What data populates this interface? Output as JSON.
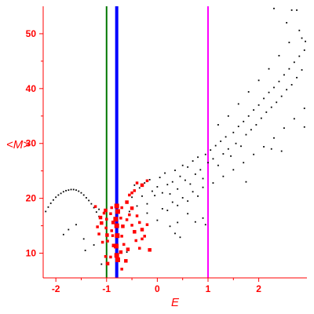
{
  "chart_data": {
    "type": "scatter",
    "title": "",
    "xlabel": "E",
    "ylabel": "<M>",
    "xlim": [
      -2.25,
      2.95
    ],
    "ylim": [
      5.5,
      55
    ],
    "x_ticks": [
      -2,
      -1,
      0,
      1,
      2
    ],
    "y_ticks": [
      10,
      20,
      30,
      40,
      50
    ],
    "grid": false,
    "legend": "none",
    "colors": {
      "axis": "#ff0000",
      "background_points": "#000000",
      "highlight_points": "#ff0000",
      "line_green": "#007700",
      "line_blue": "#0000ff",
      "line_magenta": "#ff00ff"
    },
    "vertical_lines": [
      {
        "x": -1.0,
        "color": "#007700"
      },
      {
        "x": -0.8,
        "color": "#0000ff"
      },
      {
        "x": 1.0,
        "color": "#ff00ff"
      }
    ],
    "series": [
      {
        "color": "#000000",
        "points": [
          [
            -2.2,
            17.6
          ],
          [
            -2.15,
            18.4
          ],
          [
            -2.1,
            19.1
          ],
          [
            -2.05,
            19.7
          ],
          [
            -2.0,
            20.2
          ],
          [
            -1.95,
            20.6
          ],
          [
            -1.9,
            20.9
          ],
          [
            -1.85,
            21.2
          ],
          [
            -1.8,
            21.4
          ],
          [
            -1.75,
            21.5
          ],
          [
            -1.7,
            21.6
          ],
          [
            -1.65,
            21.6
          ],
          [
            -1.6,
            21.5
          ],
          [
            -1.55,
            21.3
          ],
          [
            -1.5,
            21.0
          ],
          [
            -1.45,
            20.6
          ],
          [
            -1.4,
            20.1
          ],
          [
            -1.35,
            19.6
          ],
          [
            -1.3,
            19.0
          ],
          [
            -1.25,
            18.3
          ],
          [
            -1.2,
            17.5
          ],
          [
            -1.15,
            16.7
          ],
          [
            -1.85,
            13.4
          ],
          [
            -1.75,
            14.3
          ],
          [
            -1.6,
            15.2
          ],
          [
            -1.45,
            12.6
          ],
          [
            -1.42,
            10.5
          ],
          [
            -1.25,
            11.5
          ],
          [
            -1.1,
            8.0
          ],
          [
            -1.15,
            18.0
          ],
          [
            -0.6,
            10.2
          ],
          [
            -0.55,
            17.6
          ],
          [
            -0.5,
            20.2
          ],
          [
            -0.45,
            22.4
          ],
          [
            -0.4,
            18.6
          ],
          [
            -0.35,
            21.9
          ],
          [
            -0.3,
            20.4
          ],
          [
            -0.25,
            22.8
          ],
          [
            -0.2,
            19.0
          ],
          [
            -0.15,
            23.4
          ],
          [
            -0.1,
            21.3
          ],
          [
            -0.05,
            20.5
          ],
          [
            0.0,
            22.1
          ],
          [
            0.05,
            23.8
          ],
          [
            0.1,
            21.0
          ],
          [
            0.15,
            24.6
          ],
          [
            0.2,
            22.5
          ],
          [
            0.25,
            20.8
          ],
          [
            0.3,
            23.0
          ],
          [
            0.35,
            25.1
          ],
          [
            0.4,
            21.7
          ],
          [
            0.45,
            24.0
          ],
          [
            0.5,
            26.0
          ],
          [
            0.55,
            23.3
          ],
          [
            0.6,
            25.7
          ],
          [
            0.65,
            22.6
          ],
          [
            0.7,
            26.8
          ],
          [
            0.75,
            24.4
          ],
          [
            0.8,
            27.5
          ],
          [
            0.85,
            25.2
          ],
          [
            0.9,
            23.6
          ],
          [
            0.95,
            28.0
          ],
          [
            -0.2,
            17.3
          ],
          [
            0.0,
            16.0
          ],
          [
            0.1,
            18.1
          ],
          [
            0.2,
            17.8
          ],
          [
            0.3,
            19.3
          ],
          [
            0.4,
            18.7
          ],
          [
            0.5,
            20.1
          ],
          [
            0.6,
            19.5
          ],
          [
            0.7,
            21.2
          ],
          [
            0.8,
            20.4
          ],
          [
            0.9,
            22.0
          ],
          [
            0.25,
            14.9
          ],
          [
            0.35,
            13.6
          ],
          [
            0.45,
            12.9
          ],
          [
            0.4,
            15.6
          ],
          [
            0.6,
            17.2
          ],
          [
            0.75,
            15.7
          ],
          [
            0.9,
            16.4
          ],
          [
            0.95,
            15.2
          ],
          [
            1.0,
            26.5
          ],
          [
            1.05,
            28.8
          ],
          [
            1.1,
            27.2
          ],
          [
            1.15,
            29.6
          ],
          [
            1.2,
            26.0
          ],
          [
            1.25,
            30.4
          ],
          [
            1.3,
            28.1
          ],
          [
            1.35,
            31.2
          ],
          [
            1.4,
            29.0
          ],
          [
            1.45,
            27.7
          ],
          [
            1.5,
            32.0
          ],
          [
            1.55,
            30.0
          ],
          [
            1.6,
            33.1
          ],
          [
            1.65,
            29.5
          ],
          [
            1.7,
            34.0
          ],
          [
            1.75,
            31.6
          ],
          [
            1.8,
            35.0
          ],
          [
            1.85,
            32.5
          ],
          [
            1.9,
            36.1
          ],
          [
            1.95,
            33.4
          ],
          [
            2.0,
            37.0
          ],
          [
            2.05,
            34.6
          ],
          [
            2.1,
            38.2
          ],
          [
            2.15,
            35.7
          ],
          [
            2.2,
            39.3
          ],
          [
            2.25,
            36.6
          ],
          [
            2.3,
            40.2
          ],
          [
            2.35,
            37.5
          ],
          [
            2.4,
            41.3
          ],
          [
            2.45,
            38.6
          ],
          [
            2.5,
            42.5
          ],
          [
            2.55,
            39.8
          ],
          [
            2.6,
            43.6
          ],
          [
            2.65,
            40.7
          ],
          [
            2.7,
            44.8
          ],
          [
            2.75,
            42.0
          ],
          [
            2.8,
            45.9
          ],
          [
            2.85,
            43.4
          ],
          [
            2.9,
            47.0
          ],
          [
            1.1,
            22.8
          ],
          [
            1.3,
            24.0
          ],
          [
            1.5,
            25.2
          ],
          [
            1.7,
            26.5
          ],
          [
            1.9,
            28.0
          ],
          [
            2.1,
            29.4
          ],
          [
            2.3,
            31.0
          ],
          [
            2.5,
            32.8
          ],
          [
            2.7,
            34.5
          ],
          [
            2.9,
            36.4
          ],
          [
            1.2,
            33.4
          ],
          [
            1.4,
            35.0
          ],
          [
            1.6,
            37.2
          ],
          [
            1.8,
            39.4
          ],
          [
            2.0,
            41.5
          ],
          [
            2.2,
            43.6
          ],
          [
            2.4,
            46.0
          ],
          [
            2.6,
            48.4
          ],
          [
            2.8,
            50.6
          ],
          [
            2.3,
            54.6
          ],
          [
            2.65,
            54.3
          ],
          [
            2.75,
            54.3
          ],
          [
            2.55,
            52.0
          ],
          [
            2.85,
            49.2
          ],
          [
            2.92,
            48.6
          ],
          [
            2.25,
            29.0
          ],
          [
            2.45,
            28.6
          ],
          [
            2.9,
            33.0
          ],
          [
            1.75,
            23.0
          ]
        ]
      },
      {
        "color": "#ff0000",
        "points": [
          [
            -1.02,
            17.8
          ],
          [
            -1.0,
            16.2
          ],
          [
            -1.01,
            14.6
          ],
          [
            -0.99,
            13.3
          ],
          [
            -0.98,
            12.2
          ],
          [
            -1.02,
            9.4
          ],
          [
            -0.98,
            8.1
          ],
          [
            -0.9,
            18.3
          ],
          [
            -0.92,
            17.2
          ],
          [
            -0.87,
            15.6
          ],
          [
            -0.9,
            14.1
          ],
          [
            -0.88,
            13.2
          ],
          [
            -0.86,
            11.4
          ],
          [
            -0.92,
            9.3
          ],
          [
            -0.8,
            18.6
          ],
          [
            -0.78,
            17.6
          ],
          [
            -0.82,
            16.2
          ],
          [
            -0.8,
            15.0
          ],
          [
            -0.79,
            13.2
          ],
          [
            -0.81,
            11.3
          ],
          [
            -0.8,
            9.6
          ],
          [
            -0.78,
            8.8
          ],
          [
            -0.7,
            18.3
          ],
          [
            -0.72,
            16.4
          ],
          [
            -0.68,
            14.9
          ],
          [
            -0.7,
            13.1
          ],
          [
            -0.66,
            11.6
          ],
          [
            -0.72,
            10.2
          ],
          [
            -0.7,
            7.1
          ],
          [
            -1.05,
            17.3
          ],
          [
            -1.12,
            16.5
          ],
          [
            -1.18,
            14.8
          ],
          [
            -1.22,
            18.5
          ],
          [
            -1.1,
            15.5
          ],
          [
            -1.08,
            12.0
          ],
          [
            -1.15,
            13.5
          ],
          [
            -0.6,
            19.3
          ],
          [
            -0.55,
            17.0
          ],
          [
            -0.5,
            15.1
          ],
          [
            -0.45,
            13.9
          ],
          [
            -0.42,
            12.3
          ],
          [
            -0.6,
            16.1
          ],
          [
            -0.5,
            18.2
          ],
          [
            -0.4,
            16.8
          ],
          [
            -0.35,
            15.6
          ],
          [
            -0.3,
            14.3
          ],
          [
            -0.25,
            13.1
          ],
          [
            -0.2,
            15.2
          ],
          [
            -0.58,
            10.7
          ],
          [
            -0.35,
            10.9
          ],
          [
            -0.3,
            12.6
          ],
          [
            -0.62,
            8.6
          ],
          [
            -0.45,
            21.4
          ],
          [
            -0.4,
            22.8
          ],
          [
            -0.3,
            22.4
          ],
          [
            -0.2,
            23.2
          ],
          [
            -0.55,
            20.6
          ],
          [
            -0.15,
            10.6
          ],
          [
            -0.5,
            21.0
          ]
        ]
      }
    ]
  }
}
